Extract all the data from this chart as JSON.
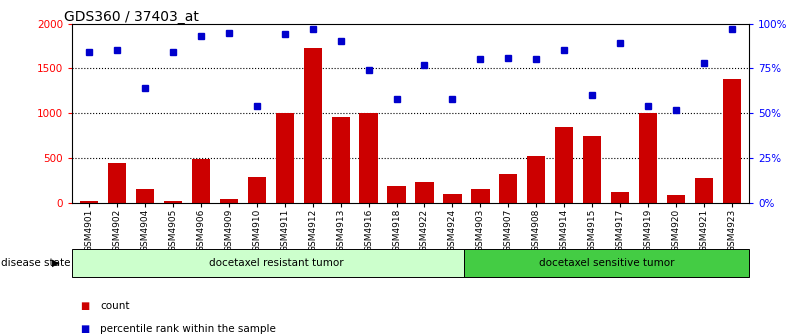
{
  "title": "GDS360 / 37403_at",
  "samples": [
    "GSM4901",
    "GSM4902",
    "GSM4904",
    "GSM4905",
    "GSM4906",
    "GSM4909",
    "GSM4910",
    "GSM4911",
    "GSM4912",
    "GSM4913",
    "GSM4916",
    "GSM4918",
    "GSM4922",
    "GSM4924",
    "GSM4903",
    "GSM4907",
    "GSM4908",
    "GSM4914",
    "GSM4915",
    "GSM4917",
    "GSM4919",
    "GSM4920",
    "GSM4921",
    "GSM4923"
  ],
  "counts": [
    30,
    450,
    155,
    20,
    490,
    45,
    290,
    1000,
    1730,
    960,
    1000,
    190,
    240,
    100,
    155,
    330,
    530,
    850,
    750,
    130,
    1000,
    90,
    280,
    1380
  ],
  "percentile_ranks": [
    84,
    85,
    64,
    84,
    93,
    95,
    54,
    94,
    97,
    90,
    74,
    58,
    77,
    58,
    80,
    81,
    80,
    85,
    60,
    89,
    54,
    52,
    78,
    97
  ],
  "group_resistant_count": 14,
  "group_sensitive_count": 10,
  "bar_color": "#cc0000",
  "marker_color": "#0000cc",
  "ylim_left": [
    0,
    2000
  ],
  "ylim_right": [
    0,
    100
  ],
  "left_yticks": [
    0,
    500,
    1000,
    1500,
    2000
  ],
  "right_yticks": [
    0,
    25,
    50,
    75,
    100
  ],
  "right_yticklabels": [
    "0%",
    "25%",
    "50%",
    "75%",
    "100%"
  ],
  "group1_label": "docetaxel resistant tumor",
  "group2_label": "docetaxel sensitive tumor",
  "disease_state_label": "disease state",
  "legend_count": "count",
  "legend_percentile": "percentile rank within the sample",
  "group1_bg": "#ccffcc",
  "group2_bg": "#44cc44",
  "title_fontsize": 10
}
